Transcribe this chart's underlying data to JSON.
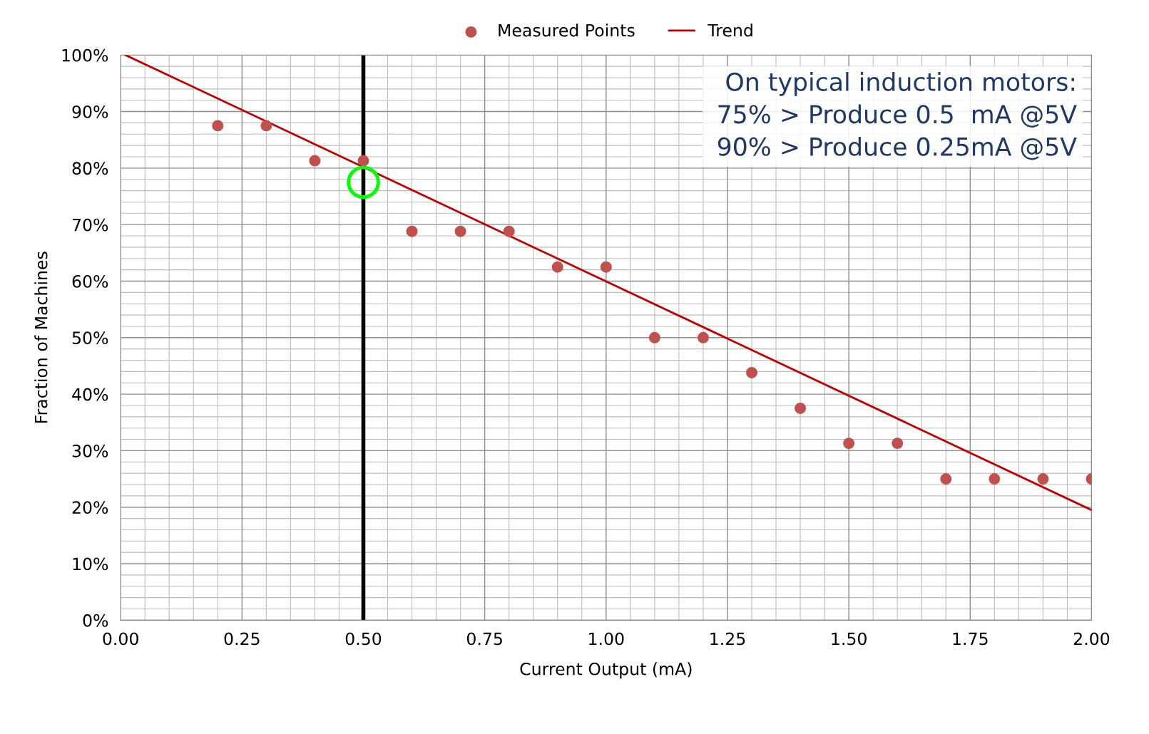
{
  "chart_data": {
    "type": "scatter",
    "xlabel": "Current Output (mA)",
    "ylabel": "Fraction of Machines",
    "xlim": [
      0,
      2
    ],
    "ylim": [
      0,
      100
    ],
    "xticks": [
      {
        "value": 0,
        "label": "0.00"
      },
      {
        "value": 0.25,
        "label": "0.25"
      },
      {
        "value": 0.5,
        "label": "0.50"
      },
      {
        "value": 0.75,
        "label": "0.75"
      },
      {
        "value": 1,
        "label": "1.00"
      },
      {
        "value": 1.25,
        "label": "1.25"
      },
      {
        "value": 1.5,
        "label": "1.50"
      },
      {
        "value": 1.75,
        "label": "1.75"
      },
      {
        "value": 2,
        "label": "2.00"
      }
    ],
    "yticks": [
      {
        "value": 0,
        "label": "0%"
      },
      {
        "value": 10,
        "label": "10%"
      },
      {
        "value": 20,
        "label": "20%"
      },
      {
        "value": 30,
        "label": "30%"
      },
      {
        "value": 40,
        "label": "40%"
      },
      {
        "value": 50,
        "label": "50%"
      },
      {
        "value": 60,
        "label": "60%"
      },
      {
        "value": 70,
        "label": "70%"
      },
      {
        "value": 80,
        "label": "80%"
      },
      {
        "value": 90,
        "label": "90%"
      },
      {
        "value": 100,
        "label": "100%"
      }
    ],
    "grid": true,
    "legend": "top",
    "marker": "circle",
    "series": [
      {
        "name": "Measured Points",
        "color": "#c0504d",
        "x": [
          0.2,
          0.3,
          0.4,
          0.5,
          0.6,
          0.7,
          0.8,
          0.9,
          1.0,
          1.1,
          1.2,
          1.3,
          1.4,
          1.5,
          1.6,
          1.7,
          1.8,
          1.9,
          2.0
        ],
        "values": [
          87.5,
          87.5,
          81.3,
          81.3,
          68.8,
          68.8,
          68.8,
          62.5,
          62.5,
          50,
          50,
          43.8,
          37.5,
          31.3,
          31.3,
          25,
          25,
          25,
          25
        ]
      },
      {
        "name": "Trend",
        "type": "line",
        "marker": "none",
        "color": "#c00000",
        "x": [
          0.01,
          2.0
        ],
        "values": [
          100,
          19.5
        ]
      },
      {
        "color": "#00ff00",
        "x": [
          0.5
        ],
        "values": [
          77.5
        ]
      }
    ],
    "ref_lines": [
      {
        "axis": "x",
        "value": 0.5,
        "color": "#000000"
      }
    ],
    "annotations": [
      "On typical induction motors:\n 75% > Produce 0.5  mA @5V\n 90% > Produce 0.25mA @5V"
    ]
  }
}
